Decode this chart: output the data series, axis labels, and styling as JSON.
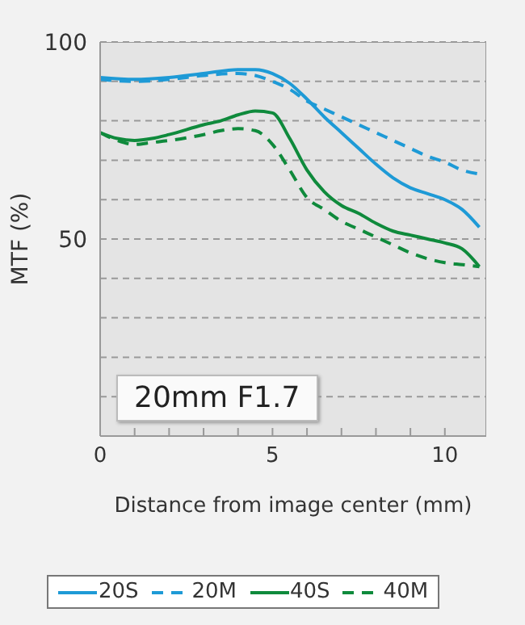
{
  "chart_data": {
    "type": "line",
    "xlabel": "Distance from image center (mm)",
    "ylabel": "MTF (%)",
    "annotations": [
      "20mm F1.7"
    ],
    "xlim": [
      0,
      11.2
    ],
    "xticks": [
      0,
      {
        "value": 1,
        "label": null
      },
      {
        "value": 2,
        "label": null
      },
      {
        "value": 3,
        "label": null
      },
      {
        "value": 4,
        "label": null
      },
      5,
      {
        "value": 6,
        "label": null
      },
      {
        "value": 7,
        "label": null
      },
      {
        "value": 8,
        "label": null
      },
      {
        "value": 9,
        "label": null
      },
      10
    ],
    "ylim": [
      0,
      100
    ],
    "yticks": [
      {
        "value": 10,
        "label": null
      },
      {
        "value": 20,
        "label": null
      },
      {
        "value": 30,
        "label": null
      },
      {
        "value": 40,
        "label": null
      },
      50,
      {
        "value": 60,
        "label": null
      },
      {
        "value": 70,
        "label": null
      },
      {
        "value": 80,
        "label": null
      },
      {
        "value": 90,
        "label": null
      },
      100
    ],
    "grid": "y",
    "legend": "bottom",
    "marker": "none",
    "series": [
      {
        "name": "20S",
        "color": "#1e9ad6",
        "line_style": "solid",
        "x": [
          0,
          1,
          2,
          3,
          4,
          4.5,
          5,
          5.5,
          6,
          6.5,
          7,
          7.5,
          8,
          8.5,
          9,
          9.5,
          10,
          10.5,
          11
        ],
        "values": [
          91,
          90.5,
          91,
          92,
          93,
          93,
          92,
          89.5,
          85.5,
          81,
          77,
          73,
          69,
          65.5,
          63,
          61.5,
          60,
          57.5,
          53
        ]
      },
      {
        "name": "20M",
        "color": "#1e9ad6",
        "line_style": "dashed",
        "x": [
          0,
          1,
          2,
          3,
          4,
          4.5,
          5,
          5.5,
          6,
          6.5,
          7,
          7.5,
          8,
          8.5,
          9,
          9.5,
          10,
          10.5,
          11
        ],
        "values": [
          90.5,
          90,
          90.5,
          91.5,
          92,
          91.5,
          90,
          88,
          85,
          83,
          81,
          79,
          77,
          75,
          73,
          71,
          69.5,
          67.5,
          66.5
        ]
      },
      {
        "name": "40S",
        "color": "#0f8a3c",
        "line_style": "solid",
        "x": [
          0,
          0.5,
          1,
          1.5,
          2,
          3,
          3.5,
          4,
          4.5,
          5,
          5.5,
          6,
          6.5,
          7,
          7.5,
          8,
          8.5,
          9,
          9.5,
          10,
          10.5,
          11
        ],
        "values": [
          77,
          75.5,
          75,
          75.5,
          76.5,
          79,
          80,
          81.5,
          82.5,
          82,
          75.5,
          67.5,
          62,
          58.5,
          56.5,
          54,
          52,
          51,
          50,
          49,
          47.5,
          43
        ]
      },
      {
        "name": "40M",
        "color": "#0f8a3c",
        "line_style": "dashed",
        "x": [
          0,
          0.5,
          1,
          1.5,
          2,
          3,
          3.5,
          4,
          4.5,
          5,
          5.5,
          6,
          6.5,
          7,
          7.5,
          8,
          8.5,
          9,
          9.5,
          10,
          10.5,
          11
        ],
        "values": [
          77,
          75,
          74,
          74.5,
          75,
          76.5,
          77.5,
          78,
          77.5,
          74,
          67.5,
          60.5,
          57.5,
          54.5,
          52.5,
          50.5,
          48.5,
          46.5,
          45,
          44,
          43.5,
          43
        ]
      }
    ]
  }
}
